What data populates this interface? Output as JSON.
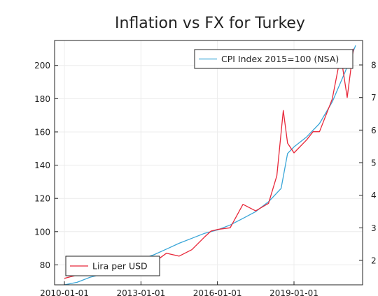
{
  "chart_data": {
    "type": "line",
    "title": "Inflation vs FX for Turkey",
    "x_ticks": [
      "2010-01-01",
      "2013-01-01",
      "2016-01-01",
      "2019-01-01"
    ],
    "x_range": [
      "2010-01-01",
      "2021-06-01"
    ],
    "grid": true,
    "axes": {
      "left": {
        "ylim": [
          68,
          215
        ],
        "ticks": [
          80,
          100,
          120,
          140,
          160,
          180,
          200
        ]
      },
      "right": {
        "ylim": [
          1.25,
          8.75
        ],
        "ticks": [
          2,
          3,
          4,
          5,
          6,
          7,
          8
        ]
      }
    },
    "series": [
      {
        "name": "CPI Index 2015=100 (NSA)",
        "axis": "left",
        "color": "#3aa6d8",
        "legend": "top-right",
        "points": [
          [
            "2010-01-01",
            68.0
          ],
          [
            "2010-07-01",
            69.5
          ],
          [
            "2011-01-01",
            72.5
          ],
          [
            "2011-07-01",
            74.5
          ],
          [
            "2012-01-01",
            79.0
          ],
          [
            "2012-07-01",
            81.0
          ],
          [
            "2013-01-01",
            83.5
          ],
          [
            "2013-07-01",
            86.0
          ],
          [
            "2014-01-01",
            89.5
          ],
          [
            "2014-07-01",
            93.0
          ],
          [
            "2015-01-01",
            96.0
          ],
          [
            "2015-07-01",
            99.0
          ],
          [
            "2016-01-01",
            101.0
          ],
          [
            "2016-07-01",
            104.0
          ],
          [
            "2017-01-01",
            108.0
          ],
          [
            "2017-07-01",
            112.0
          ],
          [
            "2018-01-01",
            118.0
          ],
          [
            "2018-07-01",
            126.0
          ],
          [
            "2018-10-01",
            147.0
          ],
          [
            "2019-01-01",
            151.0
          ],
          [
            "2019-07-01",
            157.0
          ],
          [
            "2020-01-01",
            165.0
          ],
          [
            "2020-07-01",
            178.0
          ],
          [
            "2021-01-01",
            196.0
          ],
          [
            "2021-06-01",
            212.0
          ]
        ]
      },
      {
        "name": "Lira per USD",
        "axis": "right",
        "color": "#e8283a",
        "legend": "bottom-left",
        "points": [
          [
            "2010-01-01",
            1.45
          ],
          [
            "2010-07-01",
            1.55
          ],
          [
            "2011-01-01",
            1.54
          ],
          [
            "2011-07-01",
            1.68
          ],
          [
            "2012-01-01",
            1.8
          ],
          [
            "2012-07-01",
            1.8
          ],
          [
            "2013-01-01",
            1.77
          ],
          [
            "2013-07-01",
            1.93
          ],
          [
            "2014-01-01",
            2.22
          ],
          [
            "2014-07-01",
            2.13
          ],
          [
            "2015-01-01",
            2.33
          ],
          [
            "2015-07-01",
            2.72
          ],
          [
            "2015-10-01",
            2.9
          ],
          [
            "2016-01-01",
            2.95
          ],
          [
            "2016-07-01",
            3.0
          ],
          [
            "2017-01-01",
            3.72
          ],
          [
            "2017-07-01",
            3.52
          ],
          [
            "2018-01-01",
            3.75
          ],
          [
            "2018-05-01",
            4.6
          ],
          [
            "2018-08-01",
            6.6
          ],
          [
            "2018-10-01",
            5.6
          ],
          [
            "2019-01-01",
            5.3
          ],
          [
            "2019-07-01",
            5.7
          ],
          [
            "2019-10-01",
            5.95
          ],
          [
            "2020-01-01",
            5.95
          ],
          [
            "2020-07-01",
            6.95
          ],
          [
            "2020-11-01",
            8.3
          ],
          [
            "2021-02-01",
            7.0
          ],
          [
            "2021-05-01",
            8.5
          ]
        ]
      }
    ]
  }
}
